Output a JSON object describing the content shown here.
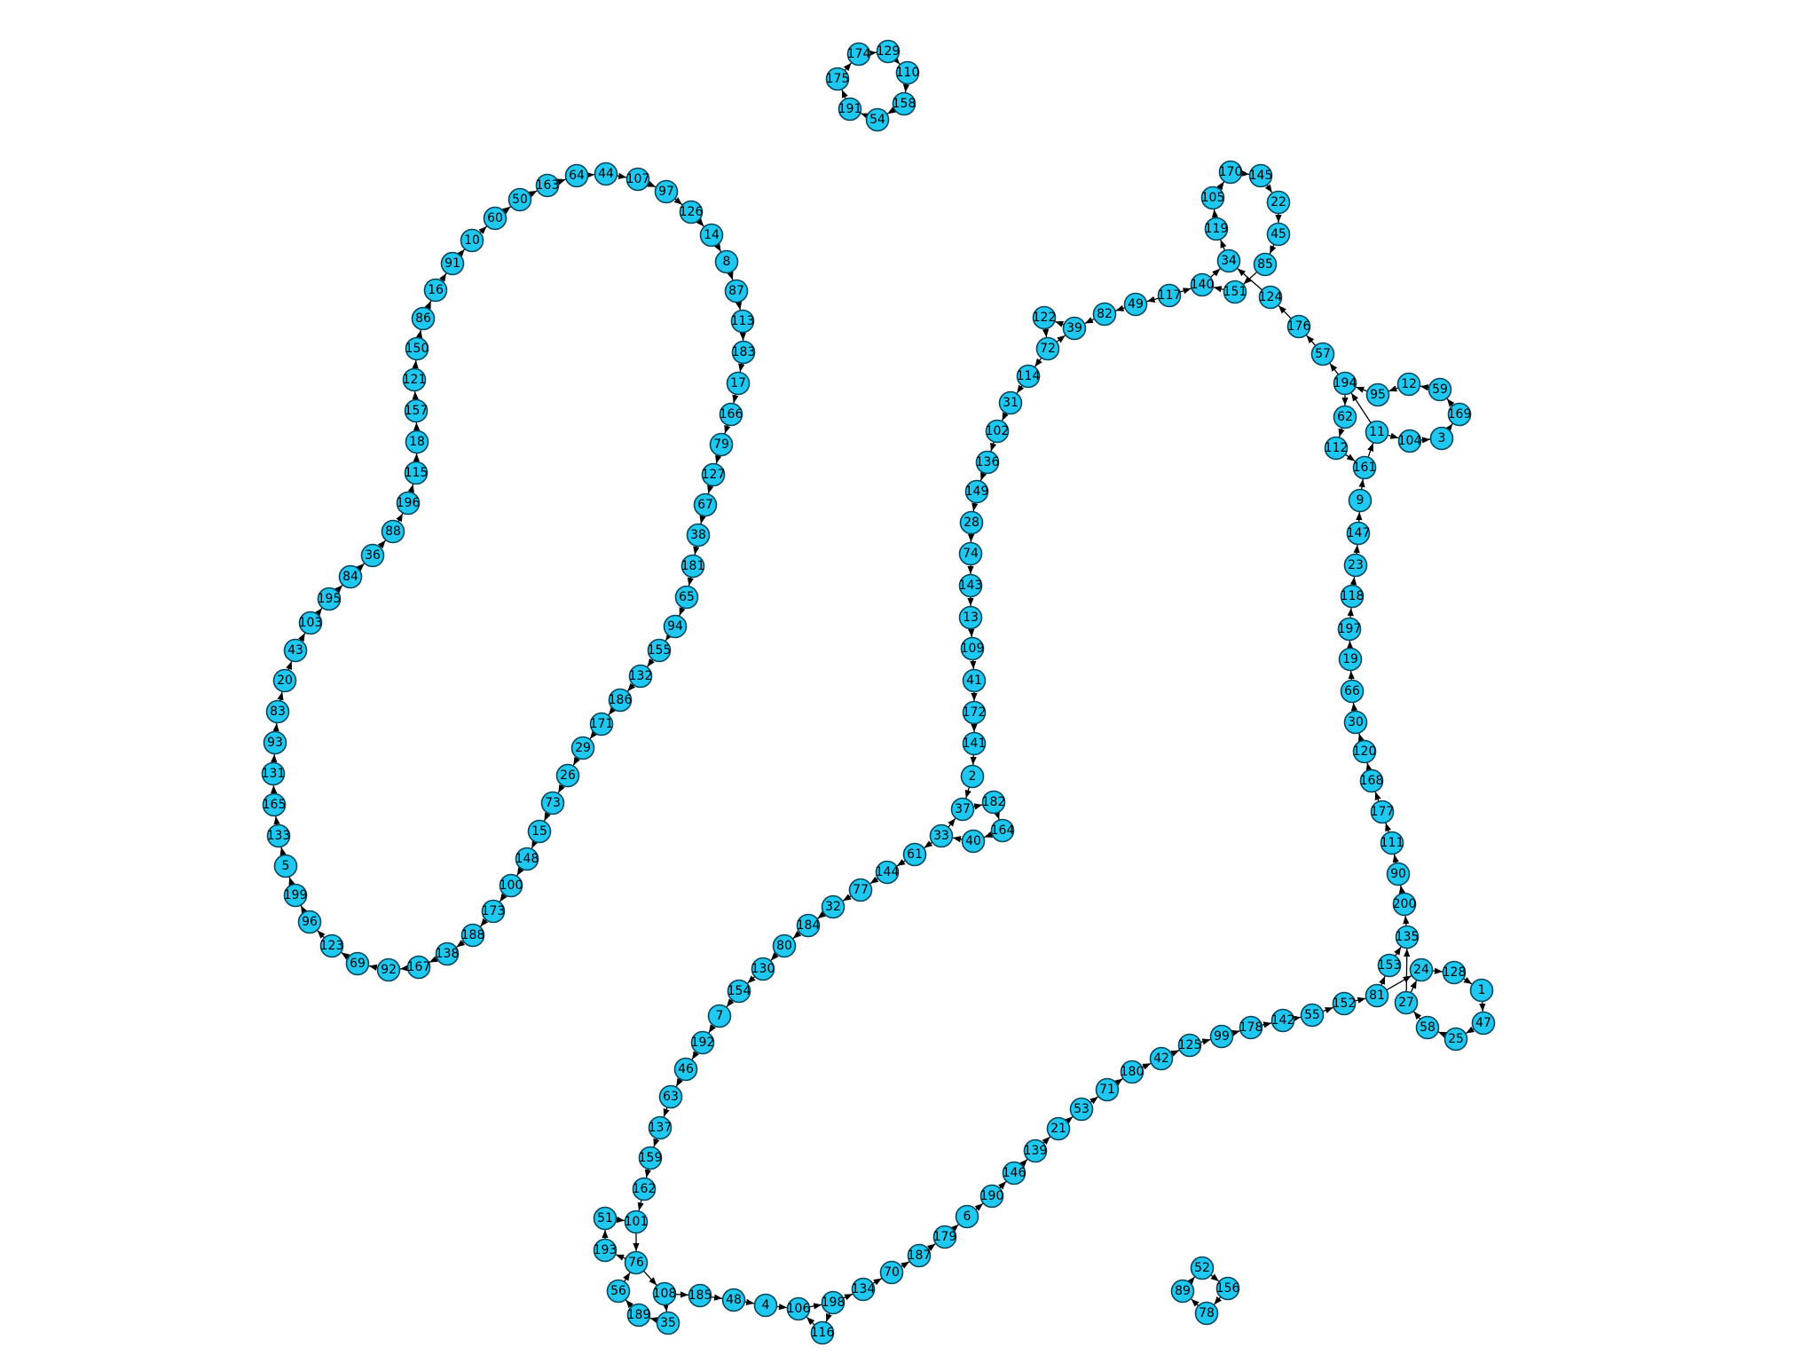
{
  "diagram": {
    "type": "directed-graph",
    "node_color": "#1ec8f0",
    "node_stroke": "#05465a",
    "edge_color": "#000000",
    "nodes": [
      "174",
      "129",
      "110",
      "158",
      "54",
      "191",
      "175",
      "52",
      "156",
      "78",
      "89",
      "64",
      "44",
      "107",
      "97",
      "126",
      "14",
      "8",
      "87",
      "113",
      "183",
      "17",
      "166",
      "79",
      "127",
      "67",
      "38",
      "181",
      "65",
      "94",
      "155",
      "132",
      "186",
      "171",
      "29",
      "26",
      "73",
      "15",
      "148",
      "100",
      "173",
      "188",
      "138",
      "167",
      "92",
      "69",
      "123",
      "96",
      "199",
      "5",
      "133",
      "165",
      "131",
      "93",
      "83",
      "20",
      "43",
      "103",
      "195",
      "84",
      "36",
      "88",
      "196",
      "115",
      "18",
      "157",
      "121",
      "150",
      "86",
      "16",
      "91",
      "10",
      "60",
      "50",
      "163",
      "170",
      "145",
      "22",
      "45",
      "85",
      "124",
      "176",
      "57",
      "194",
      "95",
      "12",
      "59",
      "169",
      "3",
      "104",
      "11",
      "62",
      "112",
      "161",
      "9",
      "147",
      "23",
      "118",
      "197",
      "19",
      "66",
      "30",
      "120",
      "168",
      "177",
      "111",
      "90",
      "200",
      "135",
      "153",
      "24",
      "128",
      "1",
      "47",
      "25",
      "58",
      "27",
      "81",
      "152",
      "55",
      "142",
      "178",
      "99",
      "125",
      "42",
      "180",
      "71",
      "53",
      "21",
      "139",
      "146",
      "190",
      "6",
      "179",
      "187",
      "70",
      "134",
      "198",
      "116",
      "106",
      "4",
      "48",
      "185",
      "108",
      "35",
      "189",
      "56",
      "76",
      "193",
      "51",
      "101",
      "162",
      "159",
      "137",
      "63",
      "46",
      "192",
      "7",
      "154",
      "130",
      "80",
      "184",
      "32",
      "77",
      "144",
      "61",
      "33",
      "40",
      "164",
      "182",
      "37",
      "2",
      "141",
      "172",
      "41",
      "109",
      "13",
      "143",
      "74",
      "28",
      "149",
      "136",
      "102",
      "31",
      "114",
      "72",
      "122",
      "39",
      "82",
      "49",
      "117",
      "140",
      "151",
      "34",
      "119",
      "105"
    ],
    "edges": [
      [
        "174",
        "129"
      ],
      [
        "129",
        "110"
      ],
      [
        "110",
        "158"
      ],
      [
        "158",
        "54"
      ],
      [
        "54",
        "191"
      ],
      [
        "191",
        "175"
      ],
      [
        "175",
        "174"
      ],
      [
        "52",
        "156"
      ],
      [
        "156",
        "78"
      ],
      [
        "78",
        "89"
      ],
      [
        "89",
        "52"
      ],
      [
        "64",
        "44"
      ],
      [
        "44",
        "107"
      ],
      [
        "107",
        "97"
      ],
      [
        "97",
        "126"
      ],
      [
        "126",
        "14"
      ],
      [
        "14",
        "8"
      ],
      [
        "8",
        "87"
      ],
      [
        "87",
        "113"
      ],
      [
        "113",
        "183"
      ],
      [
        "183",
        "17"
      ],
      [
        "17",
        "166"
      ],
      [
        "166",
        "79"
      ],
      [
        "79",
        "127"
      ],
      [
        "127",
        "67"
      ],
      [
        "67",
        "38"
      ],
      [
        "38",
        "181"
      ],
      [
        "181",
        "65"
      ],
      [
        "65",
        "94"
      ],
      [
        "94",
        "155"
      ],
      [
        "155",
        "132"
      ],
      [
        "132",
        "186"
      ],
      [
        "186",
        "171"
      ],
      [
        "171",
        "29"
      ],
      [
        "29",
        "26"
      ],
      [
        "26",
        "73"
      ],
      [
        "73",
        "15"
      ],
      [
        "15",
        "148"
      ],
      [
        "148",
        "100"
      ],
      [
        "100",
        "173"
      ],
      [
        "173",
        "188"
      ],
      [
        "188",
        "138"
      ],
      [
        "138",
        "167"
      ],
      [
        "167",
        "92"
      ],
      [
        "92",
        "69"
      ],
      [
        "69",
        "123"
      ],
      [
        "123",
        "96"
      ],
      [
        "96",
        "199"
      ],
      [
        "199",
        "5"
      ],
      [
        "5",
        "133"
      ],
      [
        "133",
        "165"
      ],
      [
        "165",
        "131"
      ],
      [
        "131",
        "93"
      ],
      [
        "93",
        "83"
      ],
      [
        "83",
        "20"
      ],
      [
        "20",
        "43"
      ],
      [
        "43",
        "103"
      ],
      [
        "103",
        "195"
      ],
      [
        "195",
        "84"
      ],
      [
        "84",
        "36"
      ],
      [
        "36",
        "88"
      ],
      [
        "88",
        "196"
      ],
      [
        "196",
        "115"
      ],
      [
        "115",
        "18"
      ],
      [
        "18",
        "157"
      ],
      [
        "157",
        "121"
      ],
      [
        "121",
        "150"
      ],
      [
        "150",
        "86"
      ],
      [
        "86",
        "16"
      ],
      [
        "16",
        "91"
      ],
      [
        "91",
        "10"
      ],
      [
        "10",
        "60"
      ],
      [
        "60",
        "50"
      ],
      [
        "50",
        "163"
      ],
      [
        "163",
        "64"
      ],
      [
        "117",
        "140"
      ],
      [
        "140",
        "34"
      ],
      [
        "34",
        "119"
      ],
      [
        "119",
        "105"
      ],
      [
        "105",
        "170"
      ],
      [
        "170",
        "145"
      ],
      [
        "145",
        "22"
      ],
      [
        "22",
        "45"
      ],
      [
        "45",
        "85"
      ],
      [
        "85",
        "151"
      ],
      [
        "151",
        "140"
      ],
      [
        "124",
        "34"
      ],
      [
        "176",
        "124"
      ],
      [
        "57",
        "176"
      ],
      [
        "194",
        "57"
      ],
      [
        "11",
        "194"
      ],
      [
        "161",
        "11"
      ],
      [
        "9",
        "161"
      ],
      [
        "11",
        "104"
      ],
      [
        "104",
        "3"
      ],
      [
        "3",
        "169"
      ],
      [
        "169",
        "59"
      ],
      [
        "59",
        "12"
      ],
      [
        "12",
        "95"
      ],
      [
        "95",
        "194"
      ],
      [
        "194",
        "62"
      ],
      [
        "62",
        "112"
      ],
      [
        "112",
        "161"
      ],
      [
        "147",
        "9"
      ],
      [
        "23",
        "147"
      ],
      [
        "118",
        "23"
      ],
      [
        "197",
        "118"
      ],
      [
        "19",
        "197"
      ],
      [
        "66",
        "19"
      ],
      [
        "30",
        "66"
      ],
      [
        "120",
        "30"
      ],
      [
        "168",
        "120"
      ],
      [
        "177",
        "168"
      ],
      [
        "111",
        "177"
      ],
      [
        "90",
        "111"
      ],
      [
        "200",
        "90"
      ],
      [
        "135",
        "200"
      ],
      [
        "153",
        "135"
      ],
      [
        "81",
        "153"
      ],
      [
        "27",
        "135"
      ],
      [
        "24",
        "128"
      ],
      [
        "128",
        "1"
      ],
      [
        "1",
        "47"
      ],
      [
        "47",
        "25"
      ],
      [
        "25",
        "58"
      ],
      [
        "58",
        "27"
      ],
      [
        "27",
        "24"
      ],
      [
        "81",
        "24"
      ],
      [
        "152",
        "81"
      ],
      [
        "55",
        "152"
      ],
      [
        "142",
        "55"
      ],
      [
        "178",
        "142"
      ],
      [
        "99",
        "178"
      ],
      [
        "125",
        "99"
      ],
      [
        "42",
        "125"
      ],
      [
        "180",
        "42"
      ],
      [
        "71",
        "180"
      ],
      [
        "53",
        "71"
      ],
      [
        "21",
        "53"
      ],
      [
        "139",
        "21"
      ],
      [
        "146",
        "139"
      ],
      [
        "190",
        "146"
      ],
      [
        "6",
        "190"
      ],
      [
        "179",
        "6"
      ],
      [
        "187",
        "179"
      ],
      [
        "70",
        "187"
      ],
      [
        "134",
        "70"
      ],
      [
        "198",
        "134"
      ],
      [
        "106",
        "198"
      ],
      [
        "116",
        "106"
      ],
      [
        "198",
        "116"
      ],
      [
        "4",
        "106"
      ],
      [
        "48",
        "4"
      ],
      [
        "185",
        "48"
      ],
      [
        "108",
        "185"
      ],
      [
        "76",
        "108"
      ],
      [
        "108",
        "35"
      ],
      [
        "35",
        "189"
      ],
      [
        "189",
        "56"
      ],
      [
        "56",
        "76"
      ],
      [
        "76",
        "193"
      ],
      [
        "193",
        "51"
      ],
      [
        "51",
        "101"
      ],
      [
        "101",
        "76"
      ],
      [
        "162",
        "101"
      ],
      [
        "159",
        "162"
      ],
      [
        "137",
        "159"
      ],
      [
        "63",
        "137"
      ],
      [
        "46",
        "63"
      ],
      [
        "192",
        "46"
      ],
      [
        "7",
        "192"
      ],
      [
        "154",
        "7"
      ],
      [
        "130",
        "154"
      ],
      [
        "80",
        "130"
      ],
      [
        "184",
        "80"
      ],
      [
        "32",
        "184"
      ],
      [
        "77",
        "32"
      ],
      [
        "144",
        "77"
      ],
      [
        "61",
        "144"
      ],
      [
        "33",
        "61"
      ],
      [
        "40",
        "33"
      ],
      [
        "164",
        "40"
      ],
      [
        "182",
        "164"
      ],
      [
        "37",
        "182"
      ],
      [
        "33",
        "37"
      ],
      [
        "2",
        "37"
      ],
      [
        "141",
        "2"
      ],
      [
        "172",
        "141"
      ],
      [
        "41",
        "172"
      ],
      [
        "109",
        "41"
      ],
      [
        "13",
        "109"
      ],
      [
        "143",
        "13"
      ],
      [
        "74",
        "143"
      ],
      [
        "28",
        "74"
      ],
      [
        "149",
        "28"
      ],
      [
        "136",
        "149"
      ],
      [
        "102",
        "136"
      ],
      [
        "31",
        "102"
      ],
      [
        "114",
        "31"
      ],
      [
        "72",
        "114"
      ],
      [
        "122",
        "72"
      ],
      [
        "39",
        "122"
      ],
      [
        "72",
        "39"
      ],
      [
        "82",
        "39"
      ],
      [
        "49",
        "82"
      ],
      [
        "117",
        "49"
      ]
    ]
  }
}
